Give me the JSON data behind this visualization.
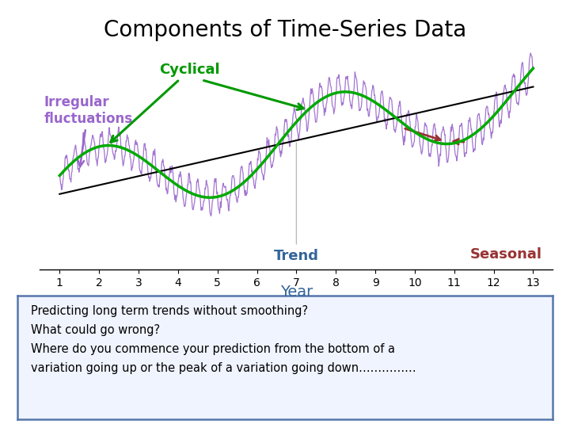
{
  "title": "Components of Time-Series Data",
  "xlabel": "Year",
  "x_ticks": [
    1,
    2,
    3,
    4,
    5,
    6,
    7,
    8,
    9,
    10,
    11,
    12,
    13
  ],
  "xlim": [
    0.5,
    13.5
  ],
  "trend_color": "black",
  "trend_lw": 1.5,
  "cyclical_color": "#00aa00",
  "cyclical_lw": 2.5,
  "irregular_color": "#9966cc",
  "irregular_lw": 0.9,
  "seasonal_arrow_color": "#993333",
  "label_irregular_color": "#9966cc",
  "label_cyclical_color": "#009900",
  "label_trend_color": "#336699",
  "label_seasonal_color": "#993333",
  "text_box_border_color": "#5577aa",
  "text_box_bg": "#f0f4ff",
  "text_box_text": "Predicting long term trends without smoothing?\nWhat could go wrong?\nWhere do you commence your prediction from the bottom of a\nvariation going up or the peak of a variation going down……………",
  "title_fontsize": 20,
  "label_fontsize": 13,
  "tick_fontsize": 10,
  "textbox_fontsize": 10.5
}
